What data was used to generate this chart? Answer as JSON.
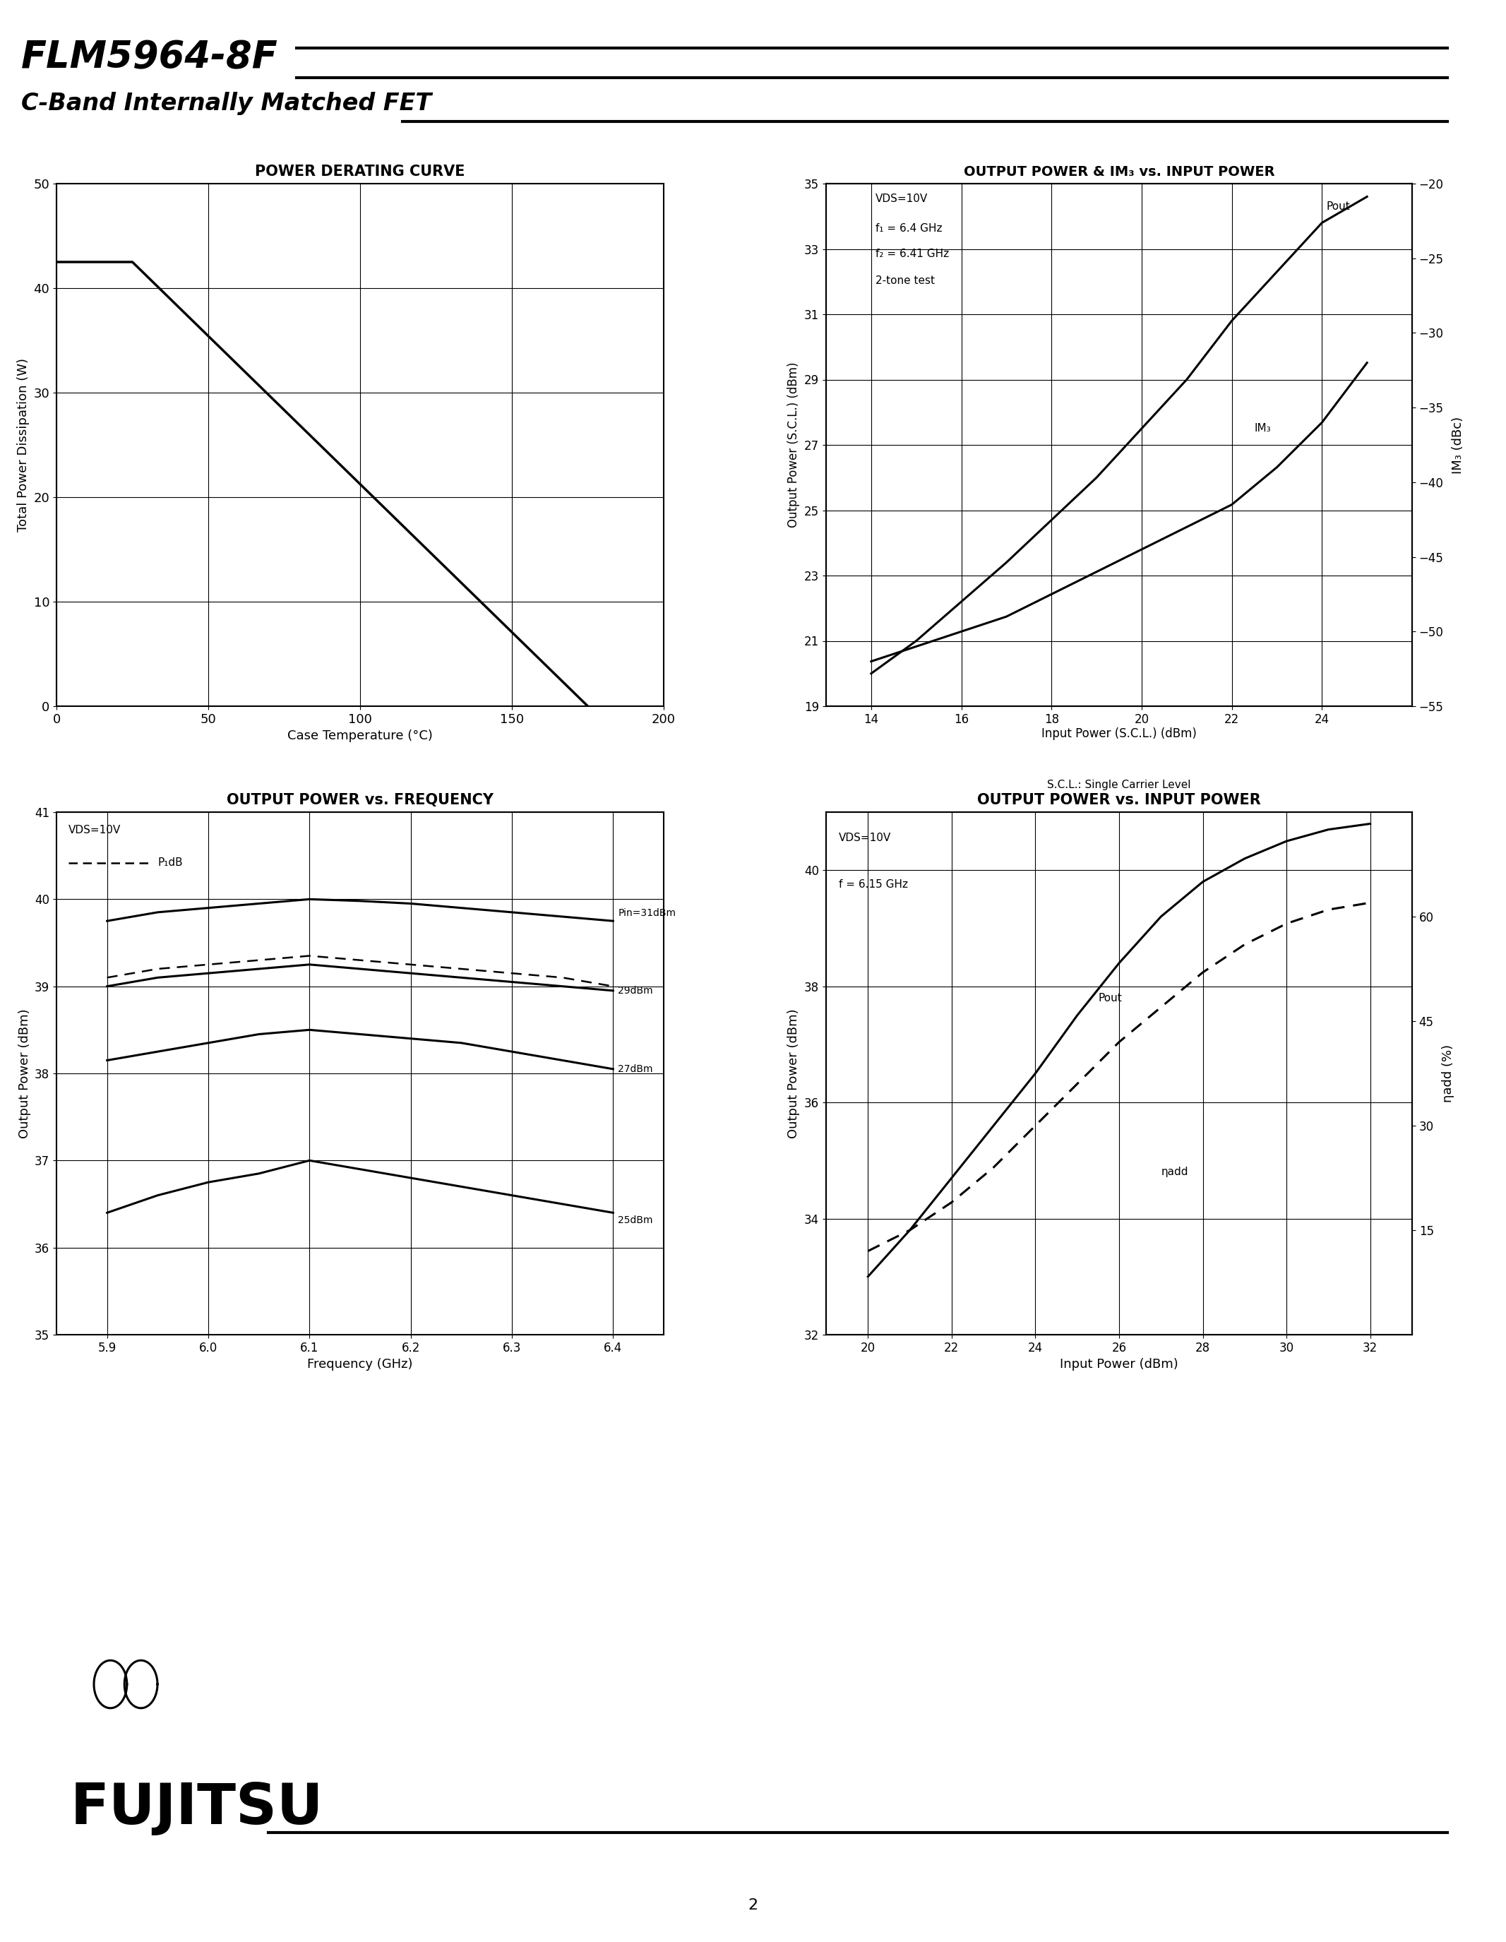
{
  "title": "FLM5964-8F",
  "subtitle": "C-Band Internally Matched FET",
  "page_number": "2",
  "chart1": {
    "title": "POWER DERATING CURVE",
    "xlabel": "Case Temperature (°C)",
    "ylabel": "Total Power Dissipation (W)",
    "xlim": [
      0,
      200
    ],
    "ylim": [
      0,
      50
    ],
    "xticks": [
      0,
      50,
      100,
      150,
      200
    ],
    "yticks": [
      0,
      10,
      20,
      30,
      40,
      50
    ],
    "curve_x": [
      0,
      25,
      175
    ],
    "curve_y": [
      42.5,
      42.5,
      0
    ]
  },
  "chart2": {
    "title": "OUTPUT POWER & IM₃ vs. INPUT POWER",
    "xlabel": "Input Power (S.C.L.) (dBm)",
    "xlabel2": "S.C.L.: Single Carrier Level",
    "ylabel": "Output Power (S.C.L.) (dBm)",
    "ylabel2": "IM₃ (dBc)",
    "xlim": [
      13,
      26
    ],
    "ylim_left": [
      19,
      35
    ],
    "ylim_right": [
      -55,
      -20
    ],
    "xticks": [
      14,
      16,
      18,
      20,
      22,
      24
    ],
    "yticks_left": [
      19,
      21,
      23,
      25,
      27,
      29,
      31,
      33,
      35
    ],
    "yticks_right": [
      -55,
      -50,
      -45,
      -40,
      -35,
      -30,
      -25,
      -20
    ],
    "annotation_line1": "VDS=10V",
    "annotation_line2": "f₁ = 6.4 GHz",
    "annotation_line3": "f₂ = 6.41 GHz",
    "annotation_line4": "2-tone test",
    "pout_label": "Pout",
    "im3_label": "IM₃",
    "pout_x": [
      14,
      15,
      16,
      17,
      18,
      19,
      20,
      21,
      22,
      23,
      24,
      25
    ],
    "pout_y": [
      20.0,
      21.0,
      22.2,
      23.4,
      24.7,
      26.0,
      27.5,
      29.0,
      30.8,
      32.3,
      33.8,
      34.6
    ],
    "im3_x": [
      14,
      15,
      16,
      17,
      18,
      19,
      20,
      21,
      22,
      23,
      24,
      25
    ],
    "im3_y": [
      -52,
      -51,
      -50,
      -49,
      -47.5,
      -46,
      -44.5,
      -43,
      -41.5,
      -39,
      -36,
      -32
    ]
  },
  "chart3": {
    "title": "OUTPUT POWER vs. FREQUENCY",
    "xlabel": "Frequency (GHz)",
    "ylabel": "Output Power (dBm)",
    "xlim": [
      5.85,
      6.45
    ],
    "ylim": [
      35,
      41
    ],
    "xticks": [
      5.9,
      6.0,
      6.1,
      6.2,
      6.3,
      6.4
    ],
    "yticks": [
      35,
      36,
      37,
      38,
      39,
      40,
      41
    ],
    "ann1": "VDS=10V",
    "ann2": "P₁dB",
    "solid31_x": [
      5.9,
      5.95,
      6.0,
      6.05,
      6.1,
      6.15,
      6.2,
      6.25,
      6.3,
      6.35,
      6.4
    ],
    "solid31_y": [
      39.75,
      39.85,
      39.9,
      39.95,
      40.0,
      39.98,
      39.95,
      39.9,
      39.85,
      39.8,
      39.75
    ],
    "p1db_x": [
      5.9,
      5.95,
      6.0,
      6.05,
      6.1,
      6.15,
      6.2,
      6.25,
      6.3,
      6.35,
      6.4
    ],
    "p1db_y": [
      39.1,
      39.2,
      39.25,
      39.3,
      39.35,
      39.3,
      39.25,
      39.2,
      39.15,
      39.1,
      39.0
    ],
    "solid29_x": [
      5.9,
      5.95,
      6.0,
      6.05,
      6.1,
      6.15,
      6.2,
      6.25,
      6.3,
      6.35,
      6.4
    ],
    "solid29_y": [
      39.0,
      39.1,
      39.15,
      39.2,
      39.25,
      39.2,
      39.15,
      39.1,
      39.05,
      39.0,
      38.95
    ],
    "solid27_x": [
      5.9,
      5.95,
      6.0,
      6.05,
      6.1,
      6.15,
      6.2,
      6.25,
      6.3,
      6.35,
      6.4
    ],
    "solid27_y": [
      38.15,
      38.25,
      38.35,
      38.45,
      38.5,
      38.45,
      38.4,
      38.35,
      38.25,
      38.15,
      38.05
    ],
    "solid25_x": [
      5.9,
      5.95,
      6.0,
      6.05,
      6.1,
      6.15,
      6.2,
      6.25,
      6.3,
      6.35,
      6.4
    ],
    "solid25_y": [
      36.4,
      36.6,
      36.75,
      36.85,
      37.0,
      36.9,
      36.8,
      36.7,
      36.6,
      36.5,
      36.4
    ],
    "labels": [
      "Pin=31dBm",
      "29dBm",
      "27dBm",
      "25dBm"
    ]
  },
  "chart4": {
    "title": "OUTPUT POWER vs. INPUT POWER",
    "xlabel": "Input Power (dBm)",
    "ylabel": "Output Power (dBm)",
    "ylabel2": "ηadd (%)",
    "xlim": [
      19,
      33
    ],
    "ylim_left": [
      32,
      41
    ],
    "ylim_right": [
      0,
      75
    ],
    "xticks": [
      20,
      22,
      24,
      26,
      28,
      30,
      32
    ],
    "yticks_left": [
      32,
      34,
      36,
      38,
      40
    ],
    "yticks_right": [
      15,
      30,
      45,
      60
    ],
    "ann1": "VDS=10V",
    "ann2": "f = 6.15 GHz",
    "pout_label": "Pout",
    "eta_label": "ηadd",
    "pout_x": [
      20,
      21,
      22,
      23,
      24,
      25,
      26,
      27,
      28,
      29,
      30,
      31,
      32
    ],
    "pout_y": [
      33.0,
      33.8,
      34.7,
      35.6,
      36.5,
      37.5,
      38.4,
      39.2,
      39.8,
      40.2,
      40.5,
      40.7,
      40.8
    ],
    "eta_x": [
      20,
      21,
      22,
      23,
      24,
      25,
      26,
      27,
      28,
      29,
      30,
      31,
      32
    ],
    "eta_y": [
      12,
      15,
      19,
      24,
      30,
      36,
      42,
      47,
      52,
      56,
      59,
      61,
      62
    ]
  }
}
